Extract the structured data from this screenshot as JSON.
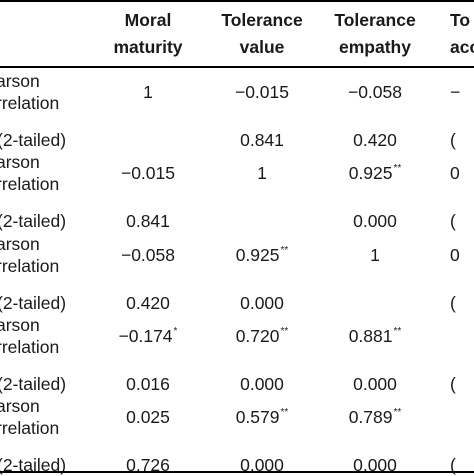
{
  "header": {
    "col1": [
      "Moral",
      "maturity"
    ],
    "col2": [
      "Tolerance",
      "value"
    ],
    "col3": [
      "Tolerance",
      "empathy"
    ],
    "col4": [
      "To",
      "acc"
    ]
  },
  "row_labels": {
    "pearson_a": "arson",
    "pearson_b": "rrelation",
    "sig": "(2-tailed)"
  },
  "rows": [
    {
      "label_a": "arson",
      "label_b": "rrelation",
      "c1": "1",
      "c2": "−0.015",
      "c3": "−0.058",
      "c4": "−",
      "sig_label": "(2-tailed)",
      "s1": "",
      "s2": "0.841",
      "s3": "0.420",
      "s4": "("
    },
    {
      "label_a": "arson",
      "label_b": "rrelation",
      "c1": "−0.015",
      "c2": "1",
      "c3": "0.925",
      "c3sup": "**",
      "c4": "0",
      "sig_label": "(2-tailed)",
      "s1": "0.841",
      "s2": "",
      "s3": "0.000",
      "s4": "("
    },
    {
      "label_a": "arson",
      "label_b": "rrelation",
      "c1": "−0.058",
      "c2": "0.925",
      "c2sup": "**",
      "c3": "1",
      "c4": "0",
      "sig_label": "(2-tailed)",
      "s1": "0.420",
      "s2": "0.000",
      "s3": "",
      "s4": "("
    },
    {
      "label_a": "arson",
      "label_b": "rrelation",
      "c1": "−0.174",
      "c1sup": "*",
      "c2": "0.720",
      "c2sup": "**",
      "c3": "0.881",
      "c3sup": "**",
      "c4": "",
      "sig_label": "(2-tailed)",
      "s1": "0.016",
      "s2": "0.000",
      "s3": "0.000",
      "s4": "("
    },
    {
      "label_a": "arson",
      "label_b": "rrelation",
      "c1": "0.025",
      "c2": "0.579",
      "c2sup": "**",
      "c3": "0.789",
      "c3sup": "**",
      "c4": "",
      "sig_label": "(2-tailed)",
      "s1": "0.726",
      "s2": "0.000",
      "s3": "0.000",
      "s4": "("
    }
  ]
}
